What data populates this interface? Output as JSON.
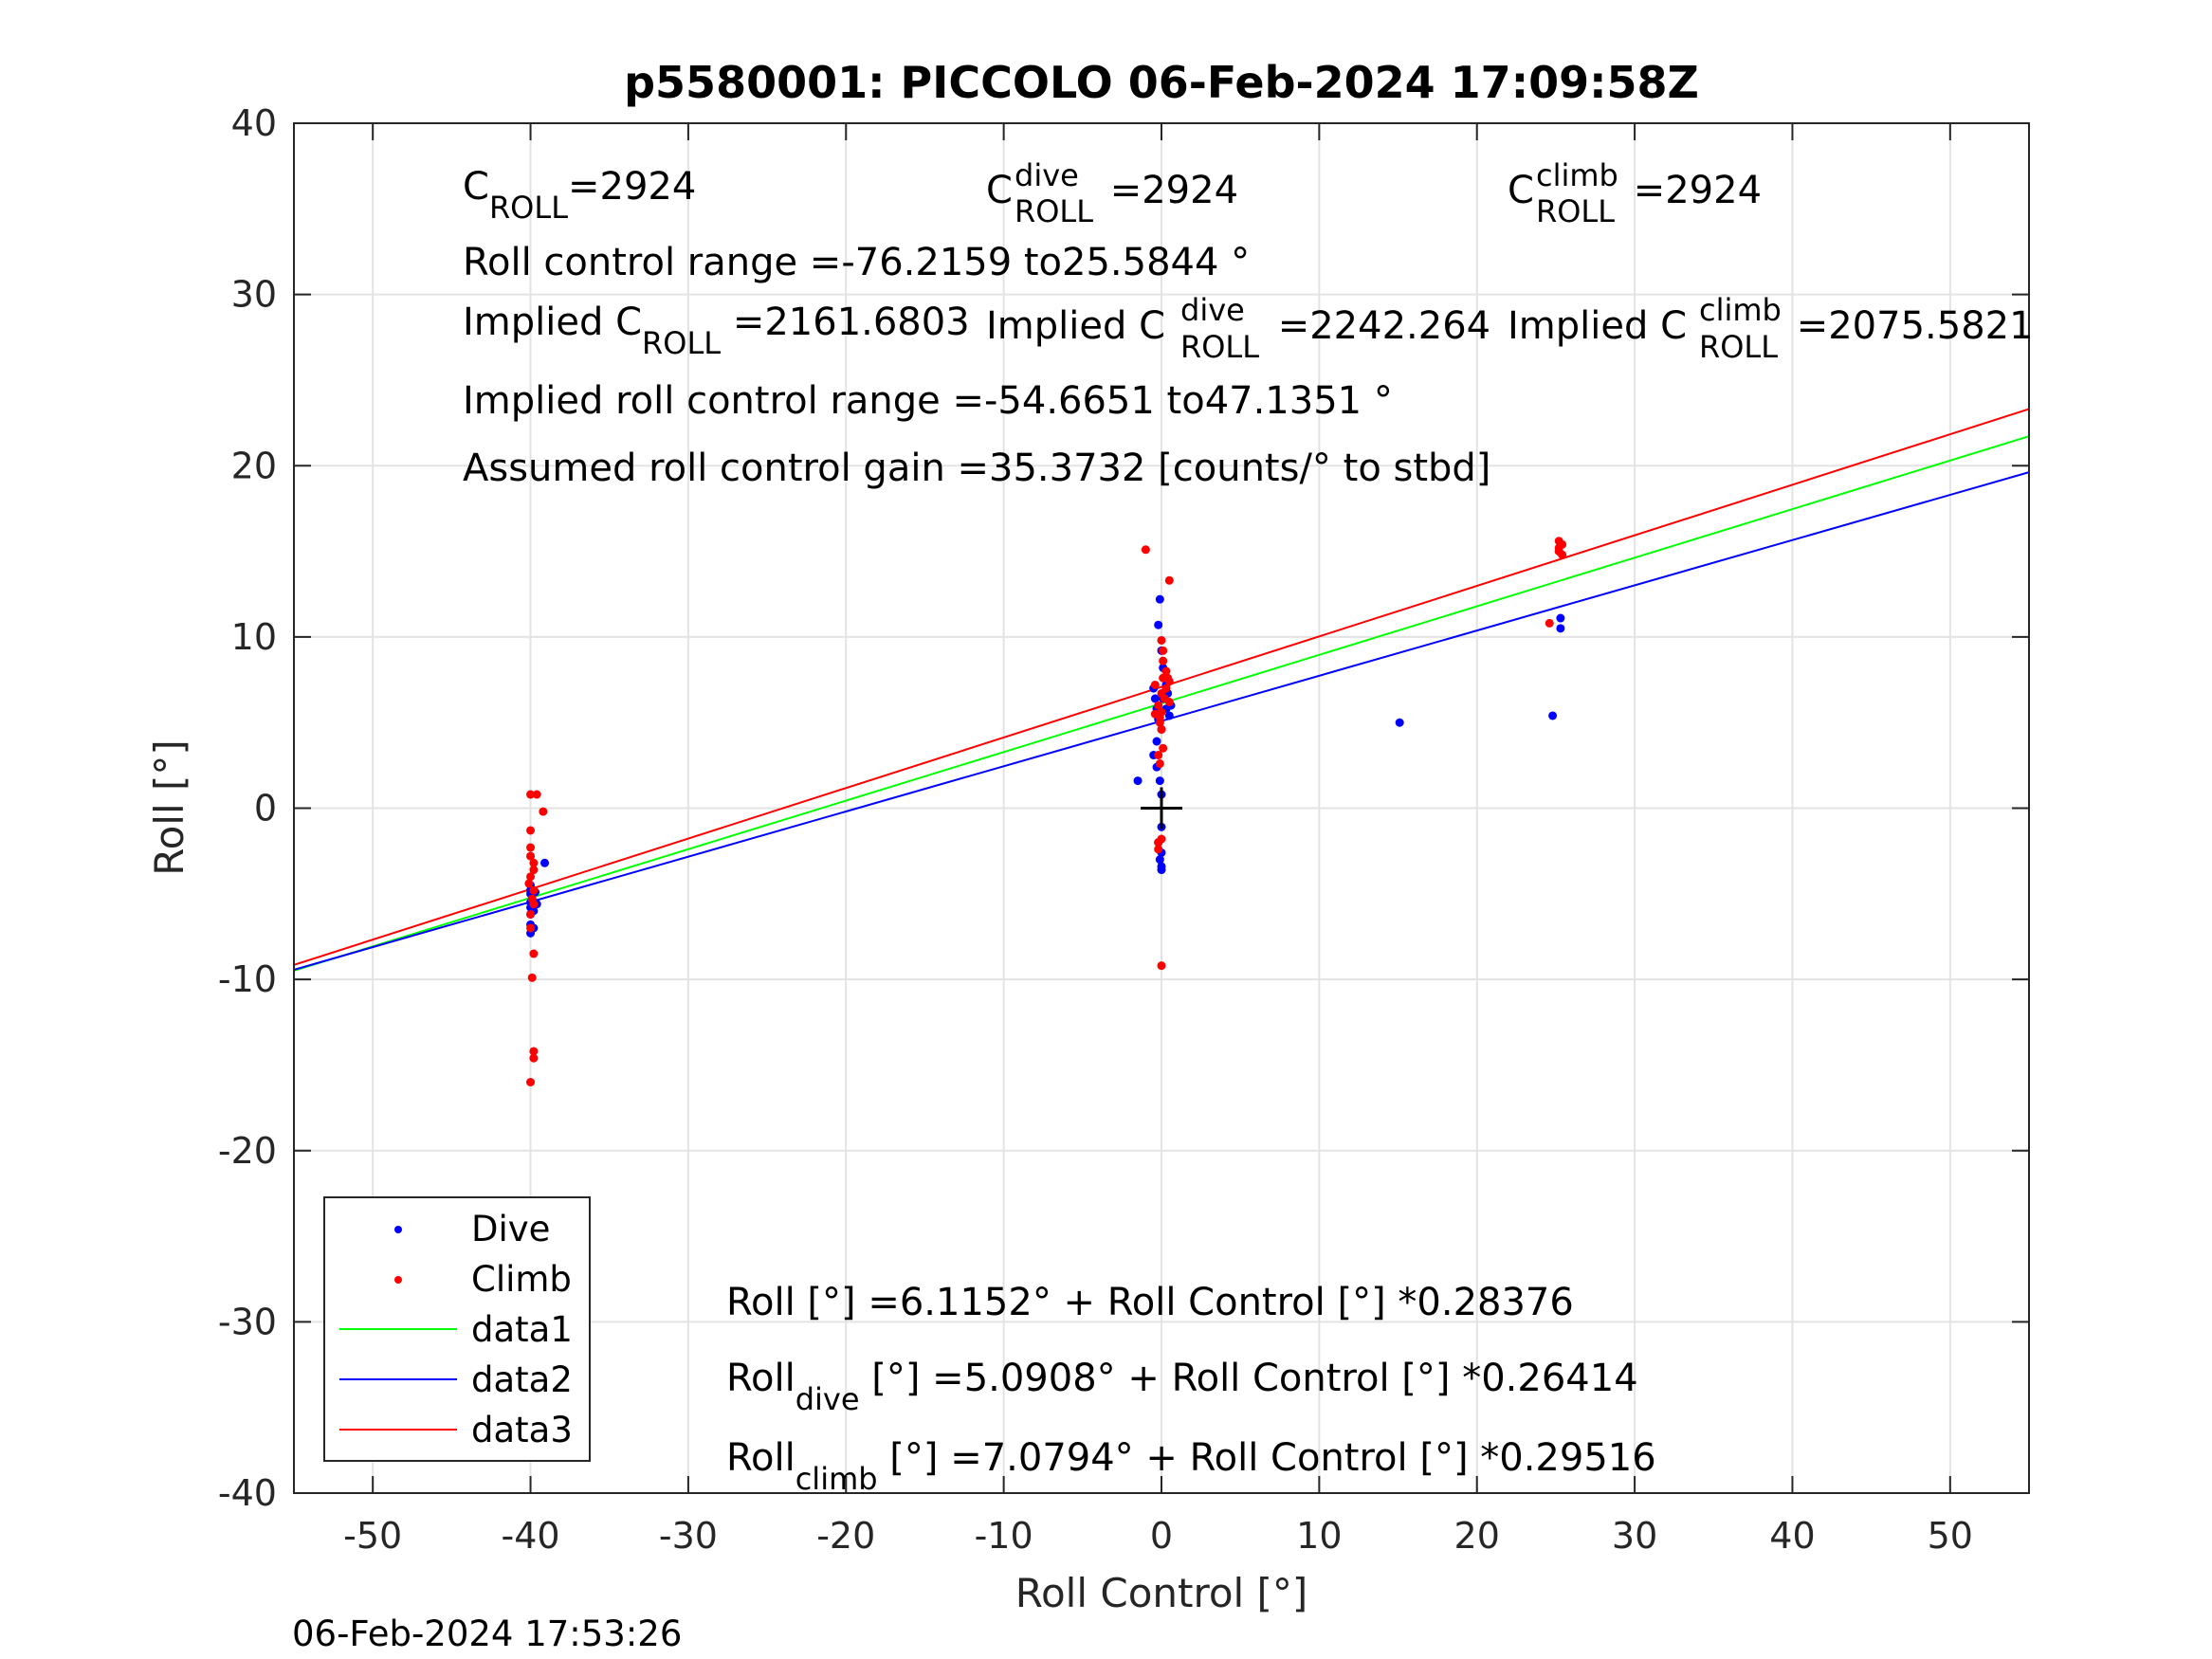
{
  "chart_data": {
    "type": "scatter",
    "title": "p5580001: PICCOLO 06-Feb-2024 17:09:58Z",
    "xlabel": "Roll Control [°]",
    "ylabel": "Roll [°]",
    "xlim": [
      -55,
      55
    ],
    "ylim": [
      -40,
      40
    ],
    "xticks": [
      -50,
      -40,
      -30,
      -20,
      -10,
      0,
      10,
      20,
      30,
      40,
      50
    ],
    "yticks": [
      -40,
      -30,
      -20,
      -10,
      0,
      10,
      20,
      30,
      40
    ],
    "grid": true,
    "legend_position": "bottom-left",
    "series": [
      {
        "name": "Dive",
        "kind": "points",
        "color": "#0000ff",
        "points": [
          [
            -40,
            -5.8
          ],
          [
            -40,
            -6.2
          ],
          [
            -40,
            -6.8
          ],
          [
            -40,
            -7.3
          ],
          [
            -40,
            -5.0
          ],
          [
            -40,
            -4.8
          ],
          [
            -40,
            -5.5
          ],
          [
            -40,
            -4.5
          ],
          [
            -39.8,
            -6.0
          ],
          [
            -39.8,
            -7.0
          ],
          [
            -39.9,
            -5.3
          ],
          [
            -39.7,
            -4.9
          ],
          [
            -39.6,
            -5.6
          ],
          [
            -39.1,
            -3.2
          ],
          [
            -0.5,
            7.0
          ],
          [
            -0.4,
            6.4
          ],
          [
            -0.3,
            5.8
          ],
          [
            -0.2,
            5.2
          ],
          [
            0,
            4.6
          ],
          [
            -0.3,
            3.9
          ],
          [
            -0.5,
            3.1
          ],
          [
            -0.3,
            2.4
          ],
          [
            -0.1,
            1.6
          ],
          [
            -1.5,
            1.6
          ],
          [
            0,
            0.8
          ],
          [
            0,
            -1.1
          ],
          [
            -0.2,
            -2.0
          ],
          [
            0,
            -2.6
          ],
          [
            -0.1,
            -3.0
          ],
          [
            0,
            -3.4
          ],
          [
            0,
            -3.6
          ],
          [
            -0.1,
            12.2
          ],
          [
            -0.2,
            10.7
          ],
          [
            0,
            9.2
          ],
          [
            0.1,
            8.2
          ],
          [
            0.3,
            7.2
          ],
          [
            0.4,
            6.7
          ],
          [
            0.6,
            6.0
          ],
          [
            0.5,
            5.4
          ],
          [
            0.3,
            5.8
          ],
          [
            0.1,
            6.4
          ],
          [
            15.1,
            5.0
          ],
          [
            24.8,
            5.4
          ],
          [
            25.3,
            10.5
          ],
          [
            25.3,
            11.1
          ]
        ]
      },
      {
        "name": "Climb",
        "kind": "points",
        "color": "#ff0000",
        "points": [
          [
            -40,
            0.8
          ],
          [
            -39.6,
            0.8
          ],
          [
            -39.2,
            -0.2
          ],
          [
            -40,
            -1.3
          ],
          [
            -40,
            -2.3
          ],
          [
            -40,
            -2.8
          ],
          [
            -39.8,
            -3.2
          ],
          [
            -39.8,
            -3.6
          ],
          [
            -40,
            -4.0
          ],
          [
            -40.1,
            -4.4
          ],
          [
            -39.8,
            -4.8
          ],
          [
            -39.9,
            -5.3
          ],
          [
            -39.8,
            -5.6
          ],
          [
            -40,
            -6.2
          ],
          [
            -40,
            -7.0
          ],
          [
            -39.8,
            -8.5
          ],
          [
            -39.9,
            -9.9
          ],
          [
            -39.8,
            -14.2
          ],
          [
            -39.8,
            -14.6
          ],
          [
            -40,
            -16.0
          ],
          [
            -1,
            15.1
          ],
          [
            0.5,
            13.3
          ],
          [
            0,
            9.8
          ],
          [
            0.1,
            9.2
          ],
          [
            0.1,
            8.6
          ],
          [
            0.3,
            8.0
          ],
          [
            0.1,
            7.6
          ],
          [
            0.5,
            7.4
          ],
          [
            0.3,
            7.0
          ],
          [
            0,
            6.7
          ],
          [
            0.2,
            6.4
          ],
          [
            0.5,
            6.2
          ],
          [
            -0.2,
            6.0
          ],
          [
            0,
            5.6
          ],
          [
            -0.1,
            5.3
          ],
          [
            -0.1,
            5.0
          ],
          [
            0,
            4.6
          ],
          [
            0.1,
            3.5
          ],
          [
            -0.2,
            3.1
          ],
          [
            -0.1,
            2.6
          ],
          [
            0,
            -1.8
          ],
          [
            -0.2,
            -2.0
          ],
          [
            -0.2,
            -2.4
          ],
          [
            0,
            -9.2
          ],
          [
            -0.4,
            5.5
          ],
          [
            0.4,
            7.6
          ],
          [
            -0.4,
            7.2
          ],
          [
            25.2,
            15.6
          ],
          [
            25.4,
            15.4
          ],
          [
            25.2,
            15.0
          ],
          [
            25.4,
            14.8
          ],
          [
            25.2,
            15.2
          ],
          [
            24.6,
            10.8
          ]
        ]
      },
      {
        "name": "data1",
        "kind": "line",
        "color": "#00ff00",
        "intercept": 6.1152,
        "slope": 0.28376,
        "x": [
          -55,
          55
        ]
      },
      {
        "name": "data2",
        "kind": "line",
        "color": "#0000ff",
        "intercept": 5.0908,
        "slope": 0.26414,
        "x": [
          -55,
          55
        ]
      },
      {
        "name": "data3",
        "kind": "line",
        "color": "#ff0000",
        "intercept": 7.0794,
        "slope": 0.29516,
        "x": [
          -55,
          55
        ]
      }
    ],
    "marker": {
      "x": 0,
      "y": 0,
      "symbol": "+",
      "color": "#000000"
    },
    "annotations": {
      "c_roll": {
        "base": "C",
        "sub": "ROLL",
        "value": "=2924"
      },
      "c_roll_dive": {
        "base": "C",
        "sup": "dive",
        "sub": "ROLL",
        "value": " =2924"
      },
      "c_roll_climb": {
        "base": "C",
        "sup": "climb",
        "sub": "ROLL",
        "value": " =2924"
      },
      "roll_range": "Roll control range =-76.2159 to25.5844 °",
      "implied_c_roll": {
        "base": "Implied C",
        "sub": "ROLL",
        "value": " =2161.6803"
      },
      "implied_c_roll_dive": {
        "base": "Implied C",
        "sup": "dive",
        "sub": "ROLL",
        "value": " =2242.264"
      },
      "implied_c_roll_climb": {
        "base": "Implied C",
        "sup": "climb",
        "sub": "ROLL",
        "value": " =2075.5821"
      },
      "implied_range": "Implied roll control range =-54.6651 to47.1351 °",
      "gain": "Assumed roll control gain =35.3732 [counts/° to stbd]",
      "fit_all": "Roll [°] =6.1152° + Roll Control [°] *0.28376",
      "fit_dive": {
        "base": "Roll",
        "sub": "dive",
        "value": " [°] =5.0908° + Roll Control [°] *0.26414"
      },
      "fit_climb": {
        "base": "Roll",
        "sub": "climb",
        "value": " [°] =7.0794° + Roll Control [°] *0.29516"
      }
    },
    "timestamp": "06-Feb-2024 17:53:26"
  }
}
